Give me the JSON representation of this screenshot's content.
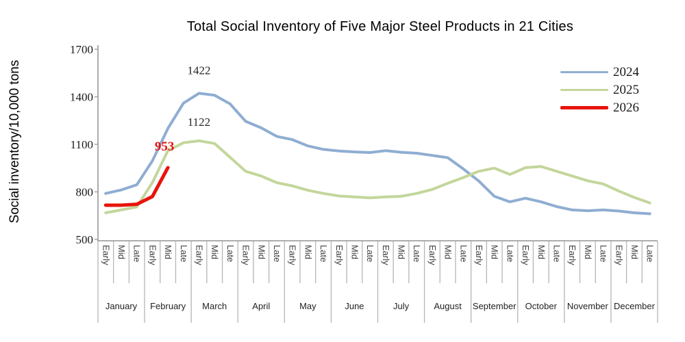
{
  "title": "Total Social Inventory of Five Major Steel Products in 21 Cities",
  "y_axis": {
    "title": "Social inventory/10,000 tons",
    "ticks": [
      1700,
      1400,
      1100,
      800,
      500
    ]
  },
  "legend": {
    "items": [
      {
        "label": "2024",
        "color": "#8fadd1"
      },
      {
        "label": "2025",
        "color": "#c3d69b"
      },
      {
        "label": "2026",
        "color": "#e8140c"
      }
    ]
  },
  "annotations": [
    {
      "text": "1422",
      "series": "2024",
      "point_index": 6,
      "color": "#262626",
      "bold": false
    },
    {
      "text": "1122",
      "series": "2025",
      "point_index": 6,
      "color": "#262626",
      "bold": false
    },
    {
      "text": "953",
      "series": "2026",
      "point_index": 4,
      "color": "#e8140c",
      "bold": true
    }
  ],
  "chart_data": {
    "type": "line",
    "title": "Total Social Inventory of Five Major Steel Products in 21 Cities",
    "xlabel": "",
    "ylabel": "Social inventory/10,000 tons",
    "ylim": [
      500,
      1700
    ],
    "y_tick_step": 300,
    "grid": false,
    "legend_position": "top-right",
    "months": [
      "January",
      "February",
      "March",
      "April",
      "May",
      "June",
      "July",
      "August",
      "September",
      "October",
      "November",
      "December"
    ],
    "sub_periods": [
      "Early",
      "Mid",
      "Late"
    ],
    "series": [
      {
        "name": "2024",
        "color": "#8fadd1",
        "values": [
          790,
          812,
          845,
          995,
          1200,
          1360,
          1422,
          1410,
          1355,
          1245,
          1204,
          1150,
          1130,
          1090,
          1068,
          1058,
          1052,
          1048,
          1060,
          1050,
          1044,
          1030,
          1016,
          945,
          868,
          772,
          737,
          760,
          737,
          707,
          686,
          681,
          686,
          679,
          668,
          662
        ]
      },
      {
        "name": "2025",
        "color": "#c3d69b",
        "values": [
          668,
          686,
          705,
          858,
          1060,
          1110,
          1122,
          1105,
          1018,
          930,
          900,
          858,
          838,
          810,
          790,
          774,
          768,
          762,
          768,
          772,
          790,
          815,
          854,
          890,
          930,
          950,
          910,
          953,
          960,
          930,
          900,
          870,
          850,
          805,
          765,
          730
        ]
      },
      {
        "name": "2026",
        "color": "#e8140c",
        "values": [
          716,
          716,
          722,
          770,
          953
        ]
      }
    ]
  }
}
